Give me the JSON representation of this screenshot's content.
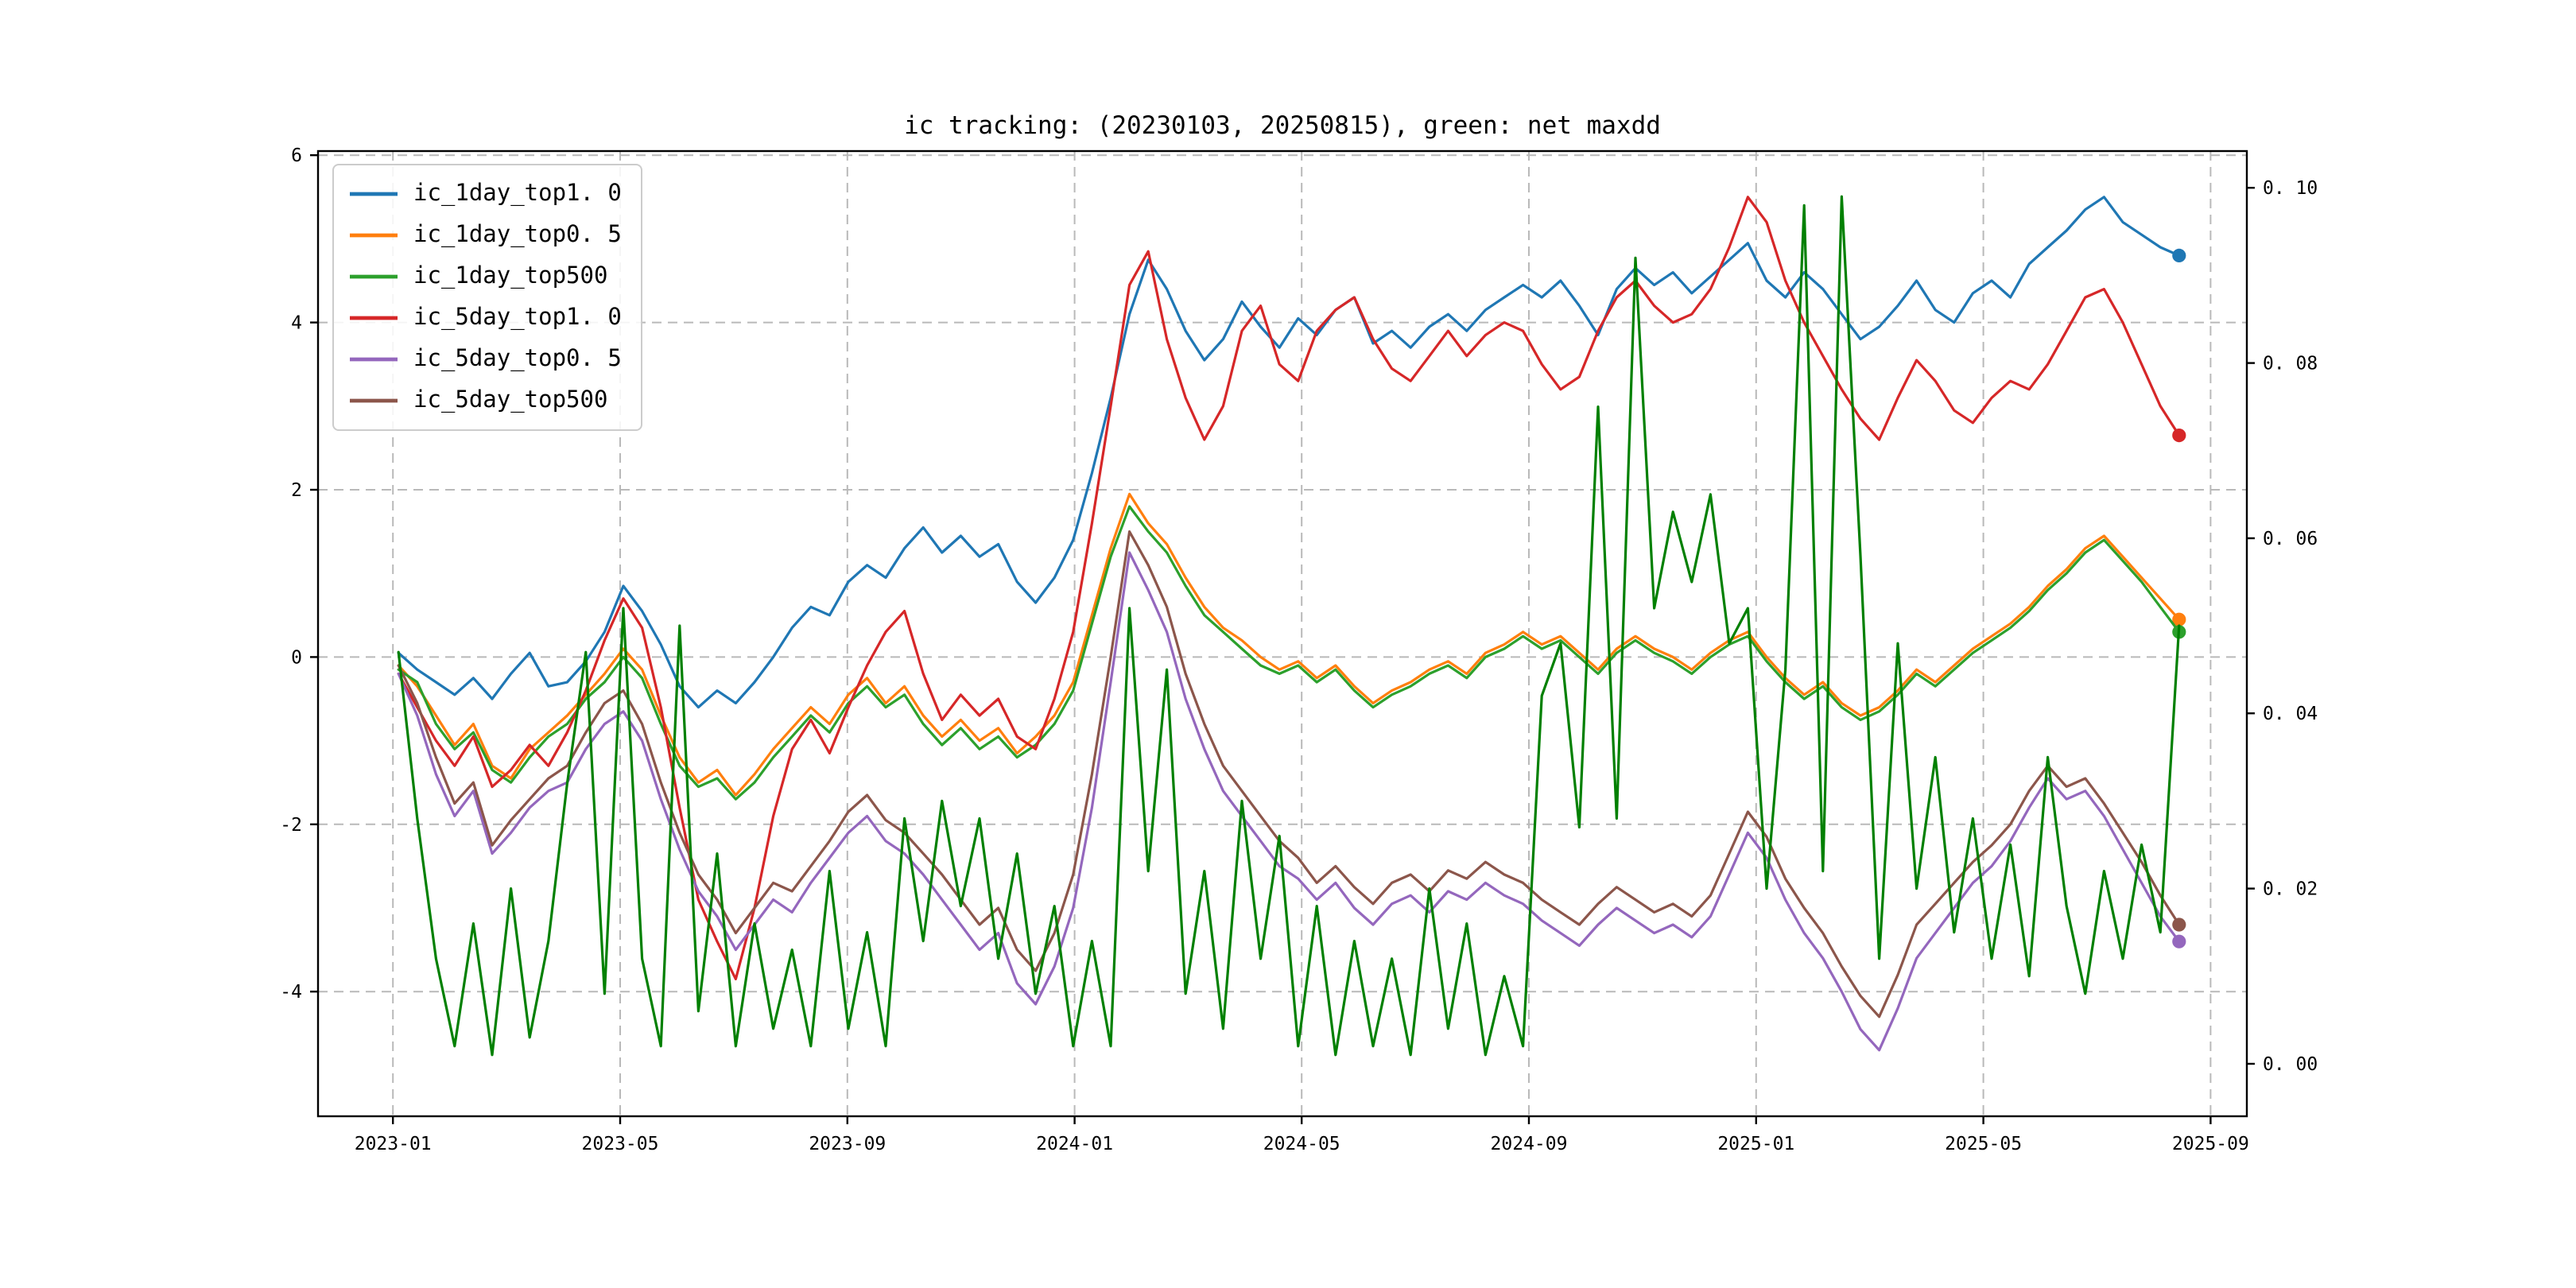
{
  "chart_data": {
    "type": "line",
    "title": "ic tracking: (20230103, 20250815), green: net maxdd",
    "xlabel": "",
    "ylabel": "",
    "grid": true,
    "legend_position": "upper left",
    "x_axis": {
      "range": [
        2022.89,
        2025.72
      ],
      "ticks": [
        2023.0,
        2023.3333,
        2023.6667,
        2024.0,
        2024.3333,
        2024.6667,
        2025.0,
        2025.3333,
        2025.6667
      ],
      "tick_labels": [
        "2023-01",
        "2023-05",
        "2023-09",
        "2024-01",
        "2024-05",
        "2024-09",
        "2025-01",
        "2025-05",
        "2025-09"
      ]
    },
    "y_axis_left": {
      "range": [
        -5.49,
        6.05
      ],
      "ticks": [
        6,
        4,
        2,
        0,
        -2,
        -4
      ],
      "tick_labels": [
        "6",
        "4",
        "2",
        "0",
        "-2",
        "-4"
      ]
    },
    "y_axis_right": {
      "range": [
        -0.006,
        0.1042
      ],
      "ticks": [
        0.1,
        0.08,
        0.06,
        0.04,
        0.02,
        0.0
      ],
      "tick_labels": [
        "0. 10",
        "0. 08",
        "0. 06",
        "0. 04",
        "0. 02",
        "0. 00"
      ]
    },
    "x_start": 2023.008,
    "x_step": 0.0275,
    "series": [
      {
        "name": "ic_1day_top1. 0",
        "color": "#1f77b4",
        "axis": "left",
        "end_dot": true,
        "in_legend": true,
        "values": [
          0.05,
          -0.15,
          -0.3,
          -0.45,
          -0.25,
          -0.5,
          -0.2,
          0.05,
          -0.35,
          -0.3,
          -0.05,
          0.3,
          0.85,
          0.55,
          0.15,
          -0.35,
          -0.6,
          -0.4,
          -0.55,
          -0.3,
          0.0,
          0.35,
          0.6,
          0.5,
          0.9,
          1.1,
          0.95,
          1.3,
          1.55,
          1.25,
          1.45,
          1.2,
          1.35,
          0.9,
          0.65,
          0.95,
          1.4,
          2.2,
          3.1,
          4.1,
          4.75,
          4.4,
          3.9,
          3.55,
          3.8,
          4.25,
          3.95,
          3.7,
          4.05,
          3.85,
          4.15,
          4.3,
          3.75,
          3.9,
          3.7,
          3.95,
          4.1,
          3.9,
          4.15,
          4.3,
          4.45,
          4.3,
          4.5,
          4.2,
          3.85,
          4.4,
          4.65,
          4.45,
          4.6,
          4.35,
          4.55,
          4.75,
          4.95,
          4.5,
          4.3,
          4.6,
          4.4,
          4.1,
          3.8,
          3.95,
          4.2,
          4.5,
          4.15,
          4.0,
          4.35,
          4.5,
          4.3,
          4.7,
          4.9,
          5.1,
          5.35,
          5.5,
          5.2,
          5.05,
          4.9,
          4.8
        ]
      },
      {
        "name": "ic_1day_top0. 5",
        "color": "#ff7f0e",
        "axis": "left",
        "end_dot": true,
        "in_legend": true,
        "values": [
          -0.1,
          -0.35,
          -0.7,
          -1.05,
          -0.8,
          -1.3,
          -1.45,
          -1.1,
          -0.9,
          -0.7,
          -0.45,
          -0.2,
          0.1,
          -0.15,
          -0.7,
          -1.2,
          -1.5,
          -1.35,
          -1.65,
          -1.4,
          -1.1,
          -0.85,
          -0.6,
          -0.8,
          -0.45,
          -0.25,
          -0.55,
          -0.35,
          -0.7,
          -0.95,
          -0.75,
          -1.0,
          -0.85,
          -1.15,
          -0.95,
          -0.7,
          -0.3,
          0.5,
          1.3,
          1.95,
          1.6,
          1.35,
          0.95,
          0.6,
          0.35,
          0.2,
          0.0,
          -0.15,
          -0.05,
          -0.25,
          -0.1,
          -0.35,
          -0.55,
          -0.4,
          -0.3,
          -0.15,
          -0.05,
          -0.2,
          0.05,
          0.15,
          0.3,
          0.15,
          0.25,
          0.05,
          -0.15,
          0.1,
          0.25,
          0.1,
          0.0,
          -0.15,
          0.05,
          0.2,
          0.3,
          0.0,
          -0.25,
          -0.45,
          -0.3,
          -0.55,
          -0.7,
          -0.6,
          -0.4,
          -0.15,
          -0.3,
          -0.1,
          0.1,
          0.25,
          0.4,
          0.6,
          0.85,
          1.05,
          1.3,
          1.45,
          1.2,
          0.95,
          0.7,
          0.45
        ]
      },
      {
        "name": "ic_1day_top500",
        "color": "#2ca02c",
        "axis": "left",
        "end_dot": true,
        "in_legend": true,
        "values": [
          -0.15,
          -0.3,
          -0.8,
          -1.1,
          -0.9,
          -1.35,
          -1.5,
          -1.2,
          -0.95,
          -0.8,
          -0.5,
          -0.3,
          0.0,
          -0.25,
          -0.8,
          -1.3,
          -1.55,
          -1.45,
          -1.7,
          -1.5,
          -1.2,
          -0.95,
          -0.7,
          -0.9,
          -0.55,
          -0.35,
          -0.6,
          -0.45,
          -0.8,
          -1.05,
          -0.85,
          -1.1,
          -0.95,
          -1.2,
          -1.05,
          -0.8,
          -0.4,
          0.4,
          1.2,
          1.8,
          1.5,
          1.25,
          0.85,
          0.5,
          0.3,
          0.1,
          -0.1,
          -0.2,
          -0.1,
          -0.3,
          -0.15,
          -0.4,
          -0.6,
          -0.45,
          -0.35,
          -0.2,
          -0.1,
          -0.25,
          0.0,
          0.1,
          0.25,
          0.1,
          0.2,
          0.0,
          -0.2,
          0.05,
          0.2,
          0.05,
          -0.05,
          -0.2,
          0.0,
          0.15,
          0.25,
          -0.05,
          -0.3,
          -0.5,
          -0.35,
          -0.6,
          -0.75,
          -0.65,
          -0.45,
          -0.2,
          -0.35,
          -0.15,
          0.05,
          0.2,
          0.35,
          0.55,
          0.8,
          1.0,
          1.25,
          1.4,
          1.15,
          0.9,
          0.6,
          0.3
        ]
      },
      {
        "name": "ic_5day_top1. 0",
        "color": "#d62728",
        "axis": "left",
        "end_dot": true,
        "in_legend": true,
        "values": [
          -0.2,
          -0.6,
          -1.0,
          -1.3,
          -0.95,
          -1.55,
          -1.35,
          -1.05,
          -1.3,
          -0.9,
          -0.4,
          0.2,
          0.7,
          0.35,
          -0.6,
          -1.8,
          -2.9,
          -3.4,
          -3.85,
          -3.0,
          -1.9,
          -1.1,
          -0.75,
          -1.15,
          -0.6,
          -0.1,
          0.3,
          0.55,
          -0.2,
          -0.75,
          -0.45,
          -0.7,
          -0.5,
          -0.95,
          -1.1,
          -0.5,
          0.3,
          1.6,
          3.0,
          4.45,
          4.85,
          3.8,
          3.1,
          2.6,
          3.0,
          3.9,
          4.2,
          3.5,
          3.3,
          3.9,
          4.15,
          4.3,
          3.8,
          3.45,
          3.3,
          3.6,
          3.9,
          3.6,
          3.85,
          4.0,
          3.9,
          3.5,
          3.2,
          3.35,
          3.9,
          4.3,
          4.5,
          4.2,
          4.0,
          4.1,
          4.4,
          4.9,
          5.5,
          5.2,
          4.5,
          4.0,
          3.6,
          3.2,
          2.85,
          2.6,
          3.1,
          3.55,
          3.3,
          2.95,
          2.8,
          3.1,
          3.3,
          3.2,
          3.5,
          3.9,
          4.3,
          4.4,
          4.0,
          3.5,
          3.0,
          2.65
        ]
      },
      {
        "name": "ic_5day_top0. 5",
        "color": "#9467bd",
        "axis": "left",
        "end_dot": true,
        "in_legend": true,
        "values": [
          -0.2,
          -0.7,
          -1.4,
          -1.9,
          -1.6,
          -2.35,
          -2.1,
          -1.8,
          -1.6,
          -1.5,
          -1.1,
          -0.8,
          -0.65,
          -1.0,
          -1.7,
          -2.3,
          -2.8,
          -3.1,
          -3.5,
          -3.2,
          -2.9,
          -3.05,
          -2.7,
          -2.4,
          -2.1,
          -1.9,
          -2.2,
          -2.35,
          -2.6,
          -2.9,
          -3.2,
          -3.5,
          -3.3,
          -3.9,
          -4.15,
          -3.7,
          -3.0,
          -1.8,
          -0.3,
          1.25,
          0.8,
          0.3,
          -0.5,
          -1.1,
          -1.6,
          -1.9,
          -2.2,
          -2.5,
          -2.65,
          -2.9,
          -2.7,
          -3.0,
          -3.2,
          -2.95,
          -2.85,
          -3.05,
          -2.8,
          -2.9,
          -2.7,
          -2.85,
          -2.95,
          -3.15,
          -3.3,
          -3.45,
          -3.2,
          -3.0,
          -3.15,
          -3.3,
          -3.2,
          -3.35,
          -3.1,
          -2.6,
          -2.1,
          -2.4,
          -2.9,
          -3.3,
          -3.6,
          -4.0,
          -4.45,
          -4.7,
          -4.2,
          -3.6,
          -3.3,
          -3.0,
          -2.7,
          -2.5,
          -2.2,
          -1.8,
          -1.45,
          -1.7,
          -1.6,
          -1.9,
          -2.3,
          -2.7,
          -3.1,
          -3.4
        ]
      },
      {
        "name": "ic_5day_top500",
        "color": "#8c564b",
        "axis": "left",
        "end_dot": true,
        "in_legend": true,
        "values": [
          -0.1,
          -0.55,
          -1.2,
          -1.75,
          -1.5,
          -2.25,
          -1.95,
          -1.7,
          -1.45,
          -1.3,
          -0.9,
          -0.55,
          -0.4,
          -0.8,
          -1.5,
          -2.1,
          -2.6,
          -2.9,
          -3.3,
          -3.0,
          -2.7,
          -2.8,
          -2.5,
          -2.2,
          -1.85,
          -1.65,
          -1.95,
          -2.1,
          -2.35,
          -2.6,
          -2.9,
          -3.2,
          -3.0,
          -3.5,
          -3.75,
          -3.3,
          -2.6,
          -1.4,
          0.0,
          1.5,
          1.1,
          0.6,
          -0.2,
          -0.8,
          -1.3,
          -1.6,
          -1.9,
          -2.2,
          -2.4,
          -2.7,
          -2.5,
          -2.75,
          -2.95,
          -2.7,
          -2.6,
          -2.8,
          -2.55,
          -2.65,
          -2.45,
          -2.6,
          -2.7,
          -2.9,
          -3.05,
          -3.2,
          -2.95,
          -2.75,
          -2.9,
          -3.05,
          -2.95,
          -3.1,
          -2.85,
          -2.35,
          -1.85,
          -2.15,
          -2.65,
          -3.0,
          -3.3,
          -3.7,
          -4.05,
          -4.3,
          -3.8,
          -3.2,
          -2.95,
          -2.7,
          -2.45,
          -2.25,
          -2.0,
          -1.6,
          -1.3,
          -1.55,
          -1.45,
          -1.75,
          -2.1,
          -2.45,
          -2.85,
          -3.2
        ]
      },
      {
        "name": "net maxdd",
        "color": "#008000",
        "axis": "right",
        "end_dot": false,
        "in_legend": false,
        "values": [
          0.047,
          0.028,
          0.012,
          0.002,
          0.016,
          0.001,
          0.02,
          0.003,
          0.014,
          0.032,
          0.047,
          0.008,
          0.052,
          0.012,
          0.002,
          0.05,
          0.006,
          0.024,
          0.002,
          0.016,
          0.004,
          0.013,
          0.002,
          0.022,
          0.004,
          0.015,
          0.002,
          0.028,
          0.014,
          0.03,
          0.018,
          0.028,
          0.012,
          0.024,
          0.008,
          0.018,
          0.002,
          0.014,
          0.002,
          0.052,
          0.022,
          0.045,
          0.008,
          0.022,
          0.004,
          0.03,
          0.012,
          0.026,
          0.002,
          0.018,
          0.001,
          0.014,
          0.002,
          0.012,
          0.001,
          0.02,
          0.004,
          0.016,
          0.001,
          0.01,
          0.002,
          0.042,
          0.048,
          0.027,
          0.075,
          0.028,
          0.092,
          0.052,
          0.063,
          0.055,
          0.065,
          0.048,
          0.052,
          0.02,
          0.045,
          0.098,
          0.022,
          0.099,
          0.058,
          0.012,
          0.048,
          0.02,
          0.035,
          0.015,
          0.028,
          0.012,
          0.025,
          0.01,
          0.035,
          0.018,
          0.008,
          0.022,
          0.012,
          0.025,
          0.015,
          0.05
        ]
      }
    ]
  }
}
